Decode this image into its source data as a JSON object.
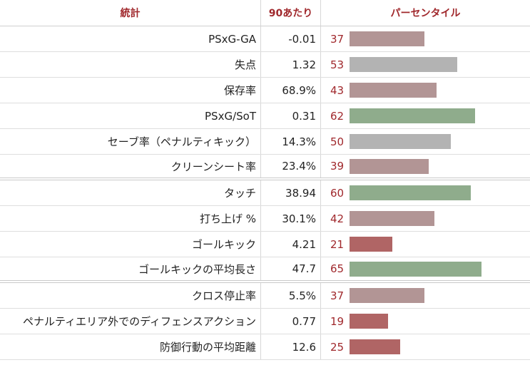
{
  "header": {
    "stat": "統計",
    "per90": "90あたり",
    "percentile": "パーセンタイル"
  },
  "colors": {
    "high": "#8fac8c",
    "mid": "#b3b3b3",
    "lowish": "#b29595",
    "low": "#b06565",
    "header_text": "#a0282c"
  },
  "chart_data": {
    "type": "bar",
    "title": "",
    "xlabel": "パーセンタイル",
    "ylabel": "",
    "xlim": [
      0,
      100
    ],
    "categories": [
      "PSxG-GA",
      "失点",
      "保存率",
      "PSxG/SoT",
      "セーブ率（ペナルティキック）",
      "クリーンシート率",
      "タッチ",
      "打ち上げ %",
      "ゴールキック",
      "ゴールキックの平均長さ",
      "クロス停止率",
      "ペナルティエリア外でのディフェンスアクション",
      "防御行動の平均距離"
    ],
    "per90": [
      "-0.01",
      "1.32",
      "68.9%",
      "0.31",
      "14.3%",
      "23.4%",
      "38.94",
      "30.1%",
      "4.21",
      "47.7",
      "5.5%",
      "0.77",
      "12.6"
    ],
    "values": [
      37,
      53,
      43,
      62,
      50,
      39,
      60,
      42,
      21,
      65,
      37,
      19,
      25
    ],
    "group_breaks_after": [
      5,
      9
    ]
  },
  "rows": [
    {
      "stat": "PSxG-GA",
      "per90": "-0.01",
      "pct": "37"
    },
    {
      "stat": "失点",
      "per90": "1.32",
      "pct": "53"
    },
    {
      "stat": "保存率",
      "per90": "68.9%",
      "pct": "43"
    },
    {
      "stat": "PSxG/SoT",
      "per90": "0.31",
      "pct": "62"
    },
    {
      "stat": "セーブ率（ペナルティキック）",
      "per90": "14.3%",
      "pct": "50"
    },
    {
      "stat": "クリーンシート率",
      "per90": "23.4%",
      "pct": "39"
    },
    {
      "stat": "タッチ",
      "per90": "38.94",
      "pct": "60"
    },
    {
      "stat": "打ち上げ %",
      "per90": "30.1%",
      "pct": "42"
    },
    {
      "stat": "ゴールキック",
      "per90": "4.21",
      "pct": "21"
    },
    {
      "stat": "ゴールキックの平均長さ",
      "per90": "47.7",
      "pct": "65"
    },
    {
      "stat": "クロス停止率",
      "per90": "5.5%",
      "pct": "37"
    },
    {
      "stat": "ペナルティエリア外でのディフェンスアクション",
      "per90": "0.77",
      "pct": "19"
    },
    {
      "stat": "防御行動の平均距離",
      "per90": "12.6",
      "pct": "25"
    }
  ]
}
